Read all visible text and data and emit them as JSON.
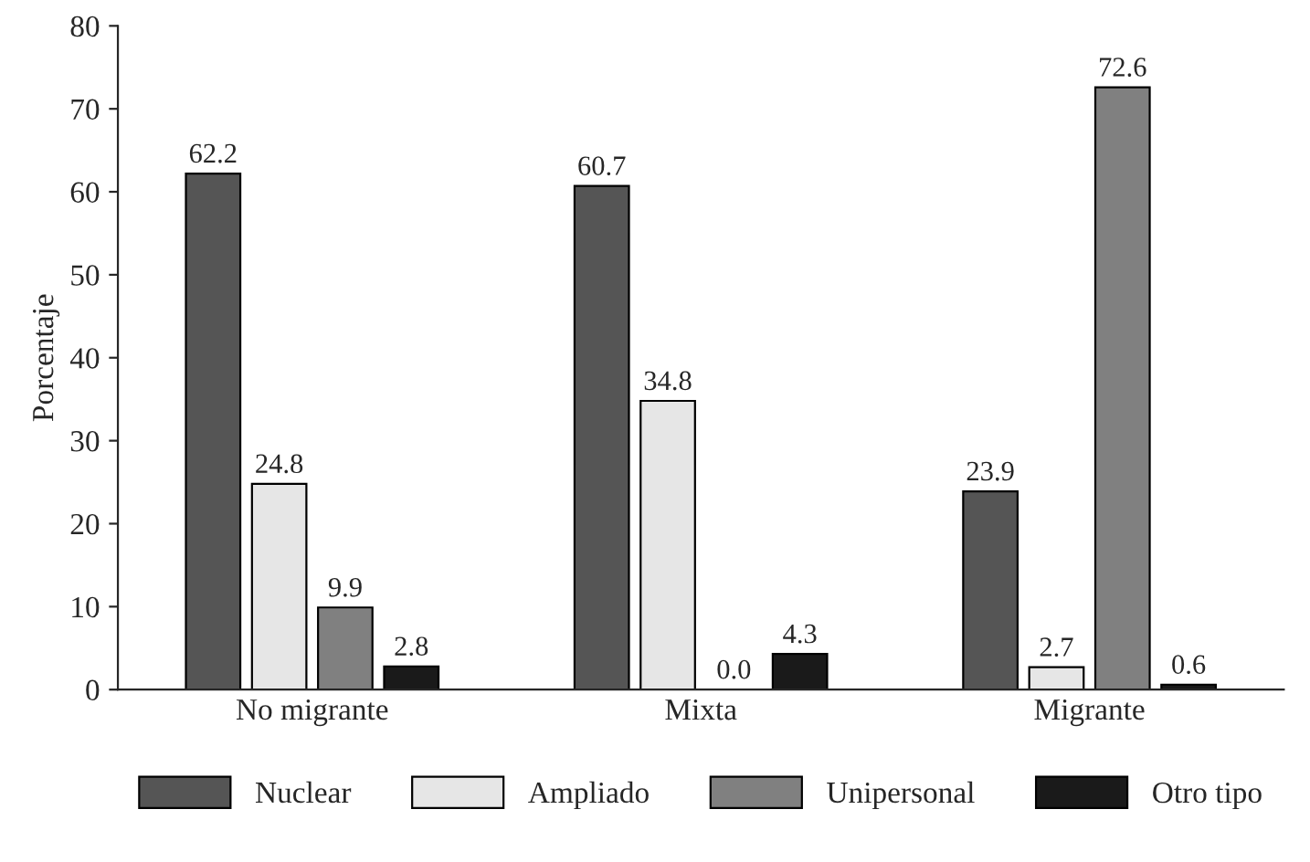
{
  "chart_data": {
    "type": "bar",
    "ylabel": "Porcentaje",
    "categories": [
      "No migrante",
      "Mixta",
      "Migrante"
    ],
    "series": [
      {
        "name": "Nuclear",
        "color": "#555555",
        "values": [
          62.2,
          60.7,
          23.9
        ],
        "value_labels": [
          "62.2",
          "60.7",
          "23.9"
        ]
      },
      {
        "name": "Ampliado",
        "color": "#e6e6e6",
        "values": [
          24.8,
          34.8,
          2.7
        ],
        "value_labels": [
          "24.8",
          "34.8",
          "2.7"
        ]
      },
      {
        "name": "Unipersonal",
        "color": "#808080",
        "values": [
          9.9,
          0.0,
          72.6
        ],
        "value_labels": [
          "9.9",
          "0.0",
          "72.6"
        ]
      },
      {
        "name": "Otro tipo",
        "color": "#1a1a1a",
        "values": [
          2.8,
          4.3,
          0.6
        ],
        "value_labels": [
          "2.8",
          "4.3",
          "0.6"
        ]
      }
    ],
    "ylim": [
      0,
      80
    ],
    "yticks": [
      0,
      10,
      20,
      30,
      40,
      50,
      60,
      70,
      80
    ],
    "grid": false,
    "legend": "bottom"
  }
}
